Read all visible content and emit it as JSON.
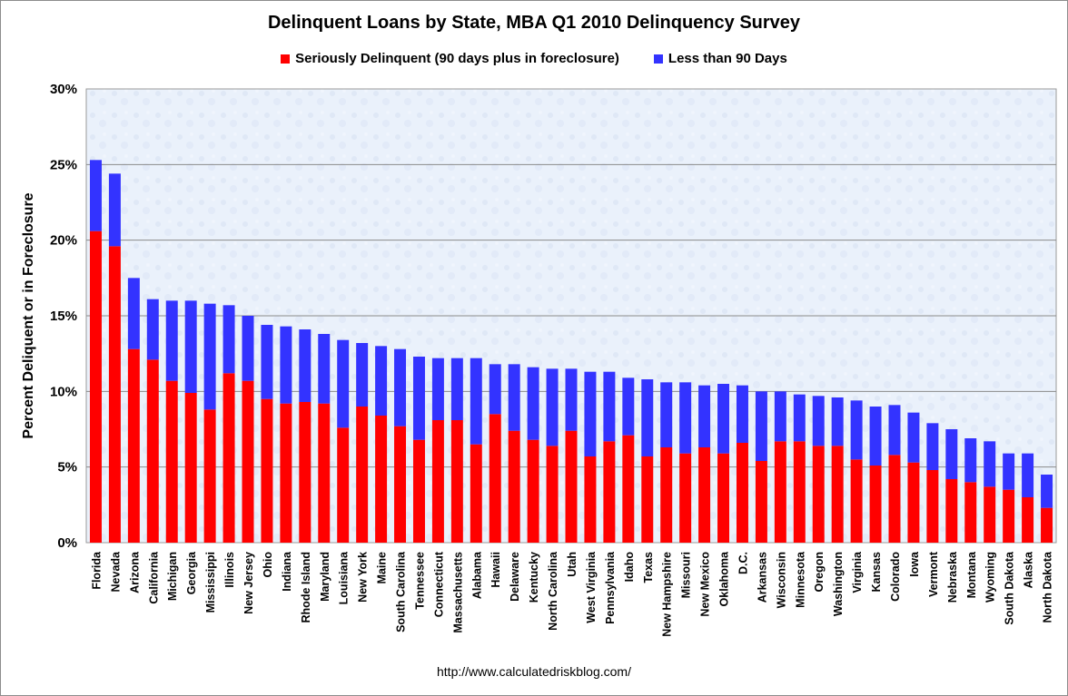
{
  "chart_data": {
    "type": "bar",
    "stacked": true,
    "title": "Delinquent Loans by State, MBA Q1 2010 Delinquency Survey",
    "xlabel": "",
    "ylabel": "Percent Deliquent or in Foreclosure",
    "ylim": [
      0,
      30
    ],
    "yticks": [
      "0%",
      "5%",
      "10%",
      "15%",
      "20%",
      "25%",
      "30%"
    ],
    "grid": true,
    "legend_position": "top",
    "source": "http://www.calculatedriskblog.com/",
    "categories": [
      "Florida",
      "Nevada",
      "Arizona",
      "California",
      "Michigan",
      "Georgia",
      "Mississippi",
      "Illinois",
      "New Jersey",
      "Ohio",
      "Indiana",
      "Rhode Island",
      "Maryland",
      "Louisiana",
      "New York",
      "Maine",
      "South Carolina",
      "Tennessee",
      "Connecticut",
      "Massachusetts",
      "Alabama",
      "Hawaii",
      "Delaware",
      "Kentucky",
      "North Carolina",
      "Utah",
      "West Virginia",
      "Pennsylvania",
      "Idaho",
      "Texas",
      "New Hampshire",
      "Missouri",
      "New Mexico",
      "Oklahoma",
      "D.C.",
      "Arkansas",
      "Wisconsin",
      "Minnesota",
      "Oregon",
      "Washington",
      "Virginia",
      "Kansas",
      "Colorado",
      "Iowa",
      "Vermont",
      "Nebraska",
      "Montana",
      "Wyoming",
      "South Dakota",
      "Alaska",
      "North Dakota"
    ],
    "series": [
      {
        "name": "Seriously Delinquent (90 days plus in foreclosure)",
        "color": "#ff0000",
        "values": [
          20.6,
          19.6,
          12.8,
          12.1,
          10.7,
          9.9,
          8.8,
          11.2,
          10.7,
          9.5,
          9.2,
          9.3,
          9.2,
          7.6,
          9.0,
          8.4,
          7.7,
          6.8,
          8.1,
          8.1,
          6.5,
          8.5,
          7.4,
          6.8,
          6.4,
          7.4,
          5.7,
          6.7,
          7.1,
          5.7,
          6.3,
          5.9,
          6.3,
          5.9,
          6.6,
          5.4,
          6.7,
          6.7,
          6.4,
          6.4,
          5.5,
          5.1,
          5.8,
          5.3,
          4.8,
          4.2,
          4.0,
          3.7,
          3.5,
          3.0,
          2.3
        ]
      },
      {
        "name": "Less than 90 Days",
        "color": "#3333ff",
        "values": [
          4.7,
          4.8,
          4.7,
          4.0,
          5.3,
          6.1,
          7.0,
          4.5,
          4.3,
          4.9,
          5.1,
          4.8,
          4.6,
          5.8,
          4.2,
          4.6,
          5.1,
          5.5,
          4.1,
          4.1,
          5.7,
          3.3,
          4.4,
          4.8,
          5.1,
          4.1,
          5.6,
          4.6,
          3.8,
          5.1,
          4.3,
          4.7,
          4.1,
          4.6,
          3.8,
          4.6,
          3.3,
          3.1,
          3.3,
          3.2,
          3.9,
          3.9,
          3.3,
          3.3,
          3.1,
          3.3,
          2.9,
          3.0,
          2.4,
          2.9,
          2.2
        ]
      }
    ]
  }
}
